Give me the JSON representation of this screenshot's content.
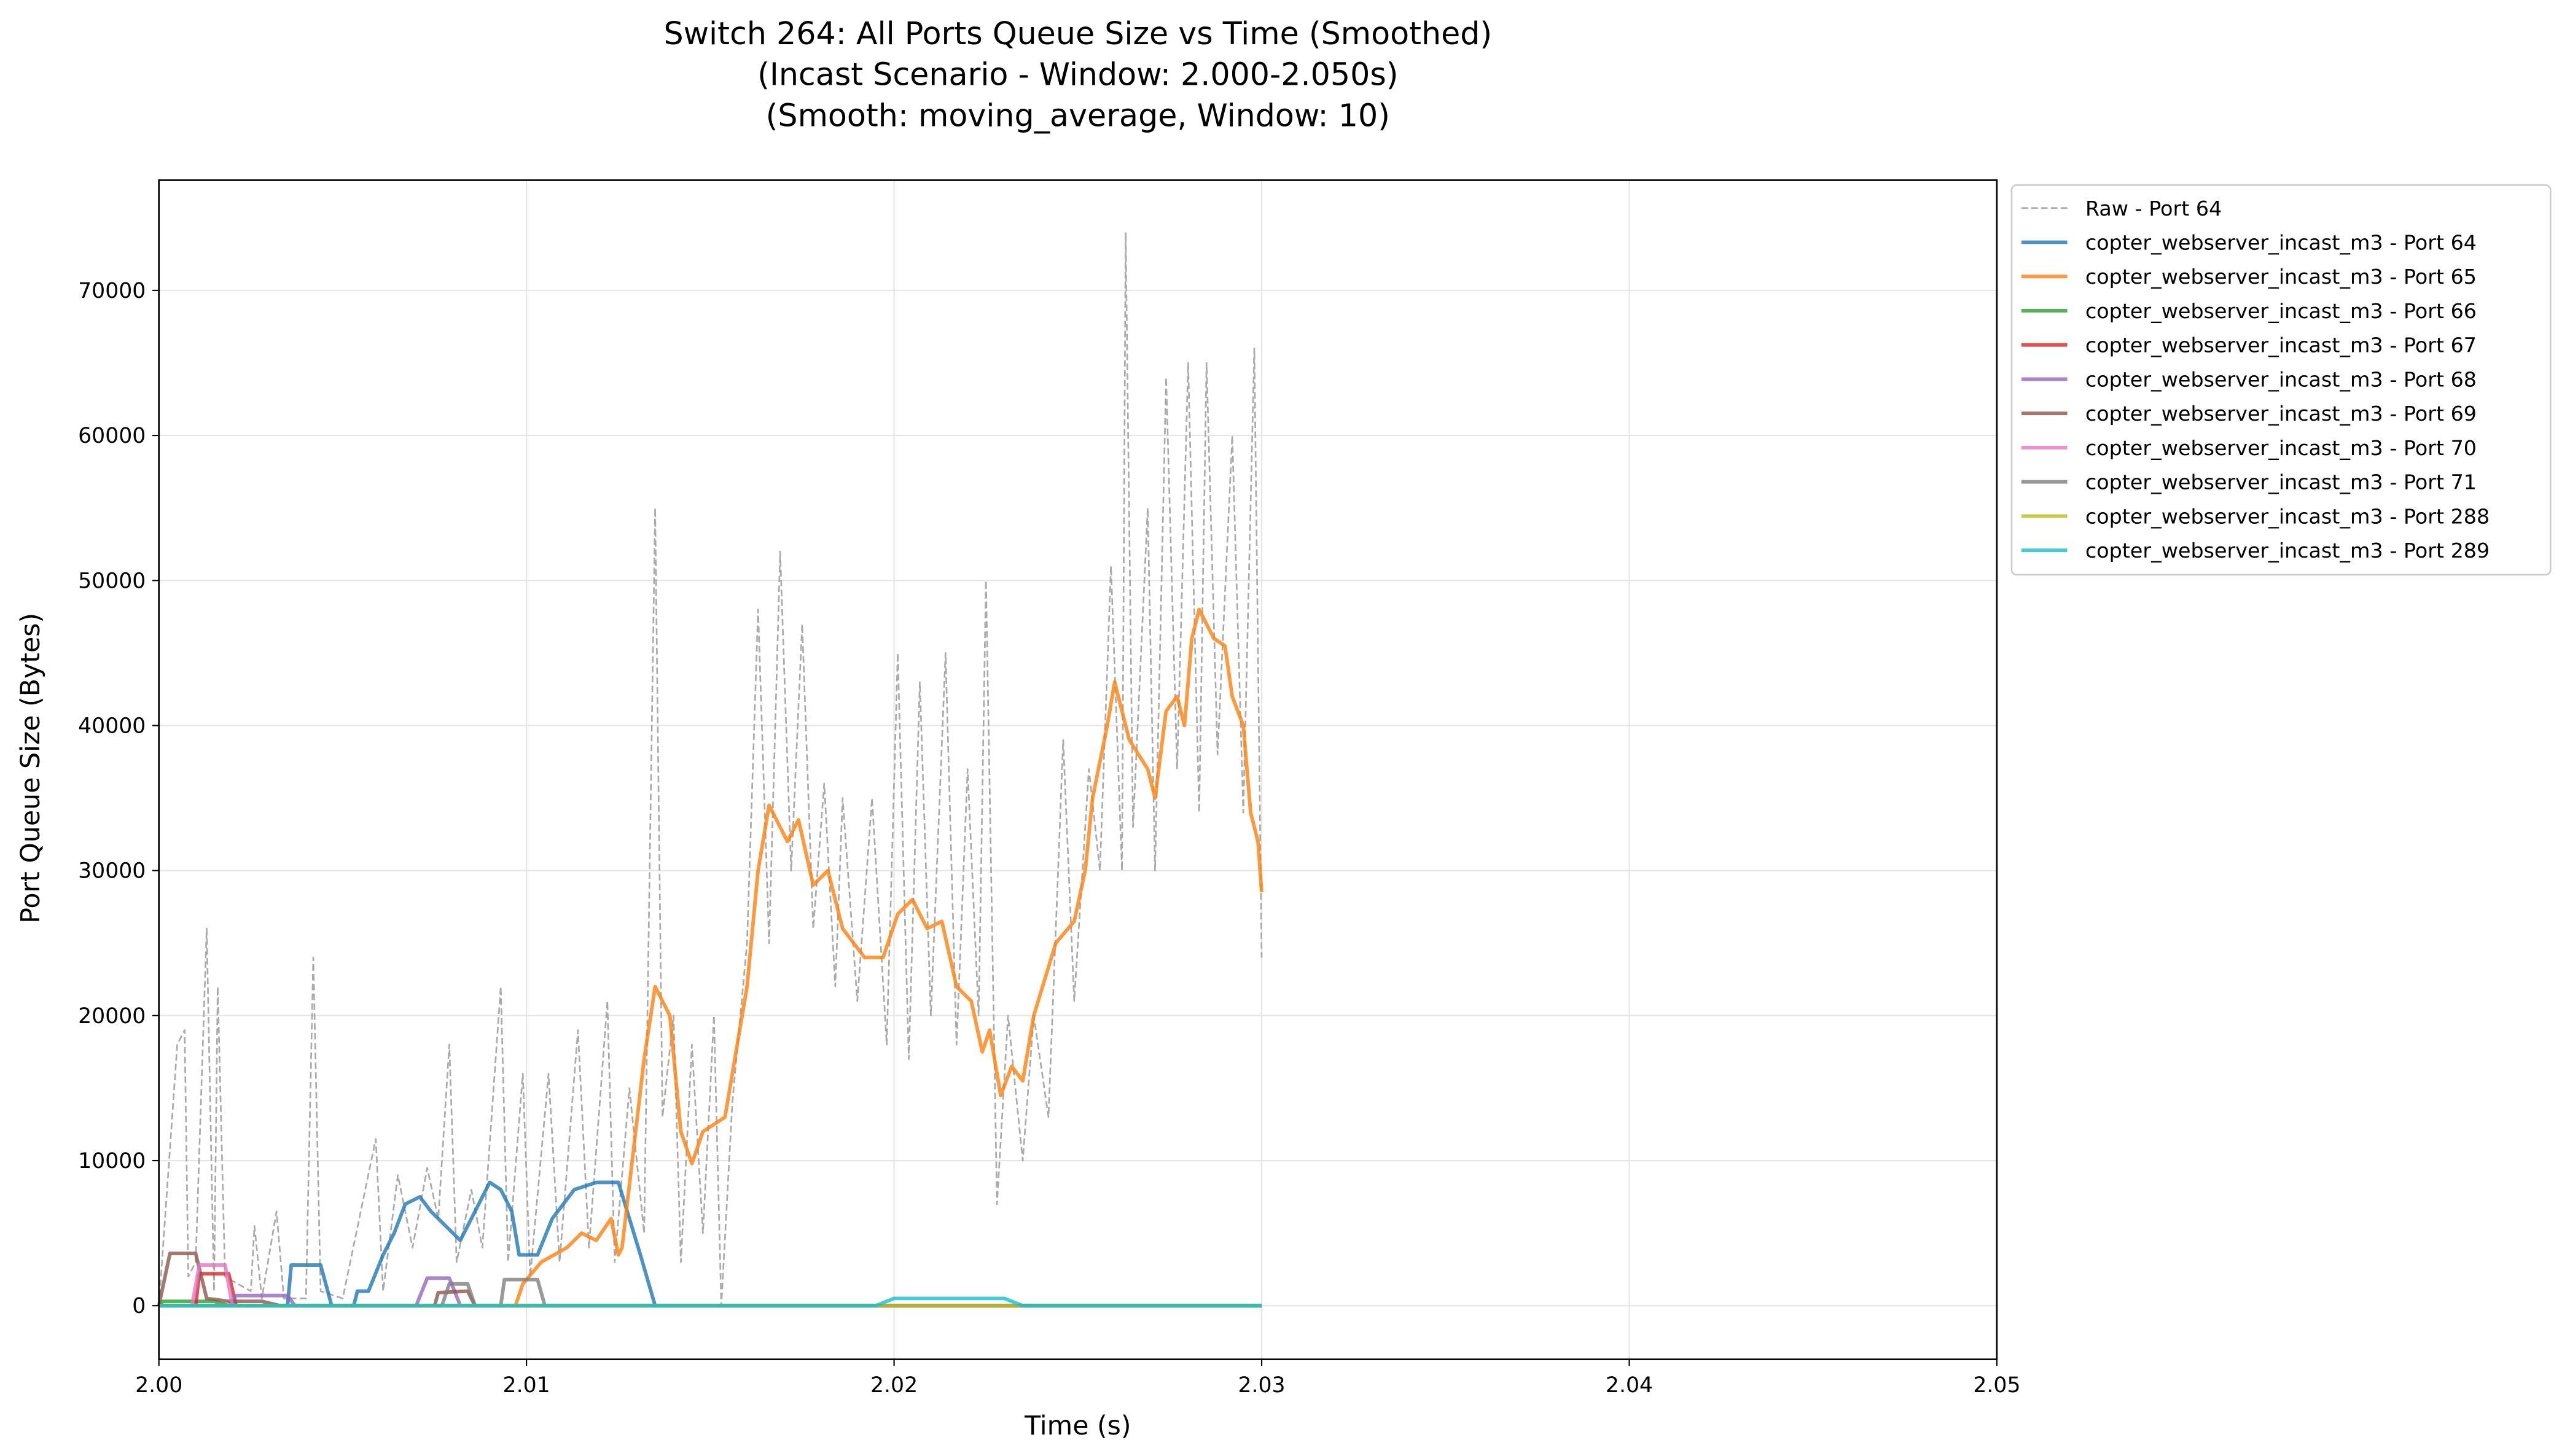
{
  "chart_data": {
    "type": "line",
    "title": "Switch 264: All Ports Queue Size vs Time (Smoothed)",
    "subtitle": [
      "(Incast Scenario - Window: 2.000-2.050s)",
      "(Smooth: moving_average, Window: 10)"
    ],
    "xlabel": "Time (s)",
    "ylabel": "Port Queue Size (Bytes)",
    "xlim": [
      2.0,
      2.05
    ],
    "xticks": [
      {
        "value": 2.0,
        "label": "2.00"
      },
      2.01,
      2.02,
      2.03,
      2.04,
      2.05
    ],
    "ylim": [
      -3700,
      77600
    ],
    "yticks": [
      0,
      10000,
      20000,
      30000,
      40000,
      50000,
      60000,
      70000
    ],
    "grid": true,
    "legend": "outside upper right",
    "series": [
      {
        "name": "Raw - Port 64",
        "color": "#aaaaaa",
        "style": "dashed",
        "x": [
          2.0,
          2.0005,
          2.0007,
          2.0008,
          2.001,
          2.0013,
          2.0015,
          2.0016,
          2.0018,
          2.0025,
          2.0026,
          2.0028,
          2.0032,
          2.0034,
          2.004,
          2.0042,
          2.0044,
          2.005,
          2.0059,
          2.0061,
          2.0065,
          2.0069,
          2.0073,
          2.0076,
          2.0079,
          2.0081,
          2.0085,
          2.0088,
          2.0093,
          2.0095,
          2.0099,
          2.0101,
          2.0106,
          2.0109,
          2.0114,
          2.0117,
          2.0122,
          2.0124,
          2.0128,
          2.0132,
          2.0135,
          2.0137,
          2.014,
          2.0142,
          2.0145,
          2.0148,
          2.0151,
          2.0153,
          2.0156,
          2.016,
          2.0163,
          2.0166,
          2.0169,
          2.0172,
          2.0175,
          2.0178,
          2.0181,
          2.0184,
          2.0186,
          2.019,
          2.0194,
          2.0198,
          2.0201,
          2.0204,
          2.0207,
          2.021,
          2.0214,
          2.0217,
          2.022,
          2.0223,
          2.0225,
          2.0228,
          2.0231,
          2.0235,
          2.0238,
          2.0242,
          2.0246,
          2.0249,
          2.0253,
          2.0256,
          2.0259,
          2.0262,
          2.0263,
          2.0265,
          2.0269,
          2.0271,
          2.0274,
          2.0277,
          2.028,
          2.0283,
          2.0285,
          2.0288,
          2.0292,
          2.0295,
          2.0298,
          2.03
        ],
        "values": [
          0,
          18000,
          19000,
          2000,
          3000,
          26000,
          1000,
          22000,
          2000,
          1000,
          5500,
          500,
          6500,
          500,
          500,
          24000,
          1000,
          500,
          11500,
          1000,
          9000,
          4000,
          9500,
          6000,
          18000,
          3000,
          8000,
          4000,
          22000,
          3000,
          16000,
          2000,
          16000,
          3000,
          19000,
          4000,
          21000,
          3000,
          15000,
          5000,
          55000,
          13000,
          20000,
          3000,
          18000,
          5000,
          20000,
          0,
          14000,
          25000,
          48000,
          25000,
          52000,
          30000,
          47000,
          26000,
          36000,
          22000,
          35000,
          21000,
          35000,
          18000,
          45000,
          17000,
          43000,
          20000,
          45000,
          18000,
          37000,
          20000,
          50000,
          7000,
          20000,
          10000,
          20000,
          13000,
          39000,
          21000,
          37000,
          30000,
          51000,
          30000,
          74000,
          33000,
          55000,
          30000,
          64000,
          37000,
          65000,
          34000,
          65000,
          38000,
          60000,
          34000,
          66000,
          24000
        ]
      },
      {
        "name": "copter_webserver_incast_m3 - Port 64",
        "color": "#1f77b4",
        "x": [
          2.0,
          2.0035,
          2.0036,
          2.0044,
          2.0047,
          2.0053,
          2.0054,
          2.0057,
          2.0061,
          2.0064,
          2.0067,
          2.0071,
          2.0074,
          2.0078,
          2.0082,
          2.0086,
          2.009,
          2.0093,
          2.0096,
          2.0098,
          2.0103,
          2.0107,
          2.0113,
          2.0119,
          2.0125,
          2.0131,
          2.0135,
          2.03
        ],
        "values": [
          0,
          0,
          2800,
          2800,
          0,
          0,
          1000,
          1000,
          3500,
          5000,
          7000,
          7500,
          6500,
          5500,
          4500,
          6500,
          8500,
          8000,
          6500,
          3500,
          3500,
          6000,
          8000,
          8500,
          8500,
          3500,
          0,
          0
        ]
      },
      {
        "name": "copter_webserver_incast_m3 - Port 65",
        "color": "#ff7f0e",
        "x": [
          2.0,
          2.0085,
          2.0097,
          2.0099,
          2.0104,
          2.0111,
          2.0115,
          2.0119,
          2.0123,
          2.0125,
          2.0126,
          2.0132,
          2.0135,
          2.0139,
          2.0142,
          2.0145,
          2.0148,
          2.0154,
          2.016,
          2.0163,
          2.0166,
          2.0171,
          2.0174,
          2.0178,
          2.0182,
          2.0186,
          2.0192,
          2.0197,
          2.0201,
          2.0205,
          2.0209,
          2.0213,
          2.0217,
          2.0221,
          2.0224,
          2.0226,
          2.0229,
          2.0232,
          2.0235,
          2.0238,
          2.0244,
          2.0249,
          2.0252,
          2.0254,
          2.0258,
          2.026,
          2.0264,
          2.0269,
          2.0271,
          2.0274,
          2.0277,
          2.0279,
          2.0281,
          2.0283,
          2.0287,
          2.029,
          2.0292,
          2.0295,
          2.0297,
          2.0299,
          2.03
        ],
        "values": [
          0,
          0,
          0,
          1500,
          3000,
          4000,
          5000,
          4500,
          6000,
          3500,
          4000,
          17000,
          22000,
          20000,
          12000,
          9800,
          12000,
          13000,
          22000,
          30000,
          34500,
          32000,
          33500,
          29000,
          30000,
          26000,
          24000,
          24000,
          27000,
          28000,
          26000,
          26500,
          22000,
          21000,
          17500,
          19000,
          14500,
          16500,
          15500,
          20000,
          25000,
          26500,
          30000,
          35000,
          40000,
          43000,
          39000,
          37000,
          35000,
          41000,
          42000,
          40000,
          46000,
          48000,
          46000,
          45500,
          42000,
          40000,
          34000,
          32000,
          28500
        ]
      },
      {
        "name": "copter_webserver_incast_m3 - Port 66",
        "color": "#2ca02c",
        "x": [
          2.0,
          2.0001,
          2.0015,
          2.0019,
          2.03
        ],
        "values": [
          0,
          300,
          300,
          0,
          0
        ]
      },
      {
        "name": "copter_webserver_incast_m3 - Port 67",
        "color": "#d62728",
        "x": [
          2.0,
          2.001,
          2.0011,
          2.0019,
          2.0021,
          2.03
        ],
        "values": [
          0,
          0,
          2200,
          2200,
          0,
          0
        ]
      },
      {
        "name": "copter_webserver_incast_m3 - Port 68",
        "color": "#9467bd",
        "x": [
          2.0,
          2.0019,
          2.0021,
          2.0035,
          2.0037,
          2.007,
          2.0073,
          2.0079,
          2.0082,
          2.03
        ],
        "values": [
          0,
          0,
          700,
          700,
          0,
          0,
          1900,
          1900,
          0,
          0
        ]
      },
      {
        "name": "copter_webserver_incast_m3 - Port 69",
        "color": "#8c564b",
        "x": [
          2.0,
          2.0003,
          2.001,
          2.0013,
          2.0019,
          2.0028,
          2.0033,
          2.0075,
          2.0076,
          2.0084,
          2.0086,
          2.03
        ],
        "values": [
          0,
          3600,
          3600,
          500,
          300,
          300,
          0,
          0,
          900,
          1000,
          0,
          0
        ]
      },
      {
        "name": "copter_webserver_incast_m3 - Port 70",
        "color": "#e377c2",
        "x": [
          2.0,
          2.0009,
          2.0011,
          2.0018,
          2.002,
          2.03
        ],
        "values": [
          0,
          0,
          2800,
          2800,
          0,
          0
        ]
      },
      {
        "name": "copter_webserver_incast_m3 - Port 71",
        "color": "#7f7f7f",
        "x": [
          2.0,
          2.0077,
          2.0079,
          2.0084,
          2.0086,
          2.0093,
          2.0094,
          2.0103,
          2.0105,
          2.03
        ],
        "values": [
          0,
          0,
          1500,
          1500,
          0,
          0,
          1800,
          1800,
          0,
          0
        ]
      },
      {
        "name": "copter_webserver_incast_m3 - Port 288",
        "color": "#bcbd22",
        "x": [
          2.0,
          2.03
        ],
        "values": [
          0,
          0
        ]
      },
      {
        "name": "copter_webserver_incast_m3 - Port 289",
        "color": "#17becf",
        "x": [
          2.0,
          2.0195,
          2.02,
          2.023,
          2.0235,
          2.03
        ],
        "values": [
          0,
          0,
          500,
          500,
          0,
          0
        ]
      }
    ]
  }
}
